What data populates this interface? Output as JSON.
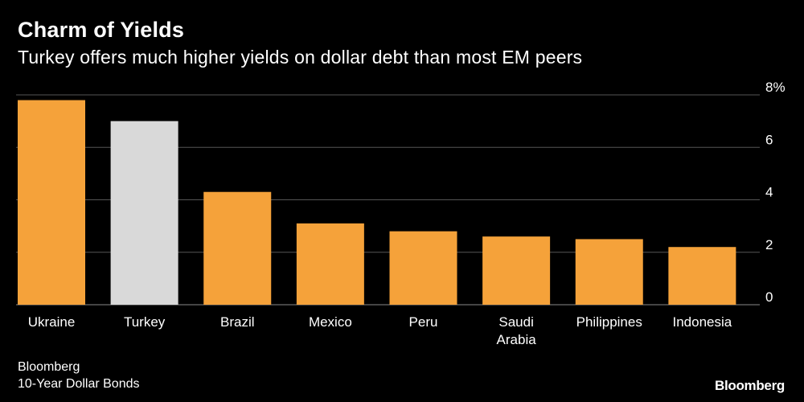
{
  "header": {
    "title": "Charm of Yields",
    "subtitle": "Turkey offers much higher yields on dollar debt than most EM peers"
  },
  "footer": {
    "source": "Bloomberg",
    "note": "10-Year Dollar Bonds",
    "brand": "Bloomberg"
  },
  "colors": {
    "background": "#000000",
    "bar": "#f5a23a",
    "highlight": "#d9d9d9",
    "grid": "#555555",
    "text": "#ffffff"
  },
  "chart_data": {
    "type": "bar",
    "title": "Charm of Yields",
    "subtitle": "Turkey offers much higher yields on dollar debt than most EM peers",
    "categories": [
      "Ukraine",
      "Turkey",
      "Brazil",
      "Mexico",
      "Peru",
      "Saudi Arabia",
      "Philippines",
      "Indonesia"
    ],
    "category_lines": [
      [
        "Ukraine"
      ],
      [
        "Turkey"
      ],
      [
        "Brazil"
      ],
      [
        "Mexico"
      ],
      [
        "Peru"
      ],
      [
        "Saudi",
        "Arabia"
      ],
      [
        "Philippines"
      ],
      [
        "Indonesia"
      ]
    ],
    "values": [
      7.8,
      7.0,
      4.3,
      3.1,
      2.8,
      2.6,
      2.5,
      2.2
    ],
    "highlight": [
      "Turkey"
    ],
    "ylim": [
      0,
      8
    ],
    "yticks": [
      0,
      2,
      4,
      6,
      8
    ],
    "ytick_labels": [
      "0",
      "2",
      "4",
      "6",
      "8%"
    ],
    "y_axis_side": "right",
    "grid": true,
    "legend": "none",
    "xlabel": "",
    "ylabel": ""
  }
}
